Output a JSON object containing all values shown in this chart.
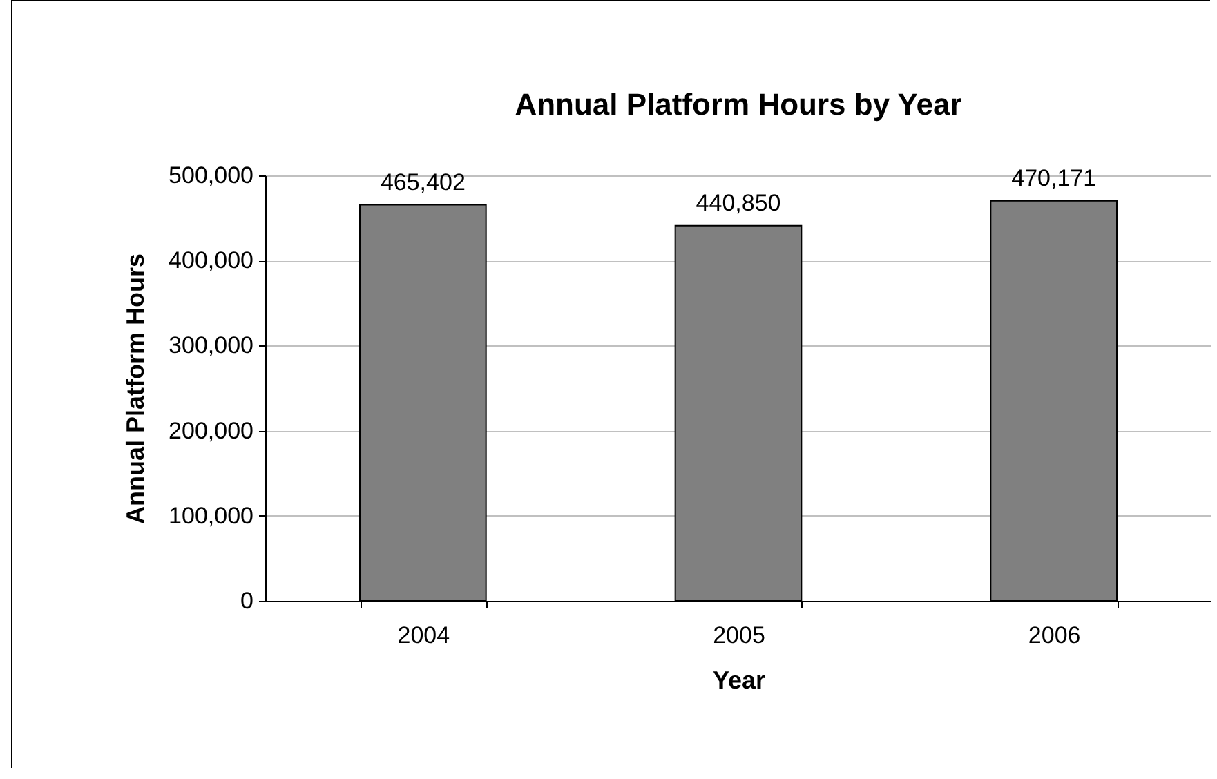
{
  "chart_data": {
    "type": "bar",
    "title": "Annual Platform Hours by Year",
    "xlabel": "Year",
    "ylabel": "Annual Platform Hours",
    "categories": [
      "2004",
      "2005",
      "2006"
    ],
    "values": [
      465402,
      440850,
      470171
    ],
    "value_labels": [
      "465,402",
      "440,850",
      "470,171"
    ],
    "color": "#808080",
    "ylim": [
      0,
      500000
    ],
    "yticks": [
      {
        "value": 0,
        "label": "0"
      },
      {
        "value": 100000,
        "label": "100,000"
      },
      {
        "value": 200000,
        "label": "200,000"
      },
      {
        "value": 300000,
        "label": "300,000"
      },
      {
        "value": 400000,
        "label": "400,000"
      },
      {
        "value": 500000,
        "label": "500,000"
      }
    ],
    "grid": "y"
  }
}
